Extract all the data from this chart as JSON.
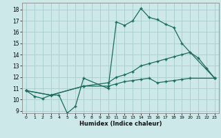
{
  "title": "",
  "xlabel": "Humidex (Indice chaleur)",
  "bg_color": "#cce8e8",
  "grid_color": "#aacccc",
  "line_color": "#1a6b5a",
  "xlim": [
    -0.5,
    23.5
  ],
  "ylim": [
    8.8,
    18.6
  ],
  "xticks": [
    0,
    1,
    2,
    3,
    4,
    5,
    6,
    7,
    8,
    9,
    10,
    11,
    12,
    13,
    14,
    15,
    16,
    17,
    18,
    19,
    20,
    21,
    22,
    23
  ],
  "yticks": [
    9,
    10,
    11,
    12,
    13,
    14,
    15,
    16,
    17,
    18
  ],
  "line1_x": [
    0,
    1,
    2,
    3,
    4,
    5,
    6,
    7,
    10,
    11,
    12,
    13,
    14,
    15,
    16,
    17,
    18,
    19,
    20,
    21,
    22,
    23
  ],
  "line1_y": [
    10.8,
    10.3,
    10.1,
    10.4,
    10.4,
    8.8,
    9.4,
    11.9,
    11.0,
    16.9,
    16.6,
    17.0,
    18.1,
    17.3,
    17.1,
    16.7,
    16.4,
    15.0,
    14.2,
    13.7,
    12.8,
    11.9
  ],
  "line2_x": [
    0,
    3,
    7,
    10,
    11,
    12,
    13,
    14,
    15,
    16,
    17,
    18,
    19,
    20,
    23
  ],
  "line2_y": [
    10.8,
    10.4,
    11.2,
    11.5,
    12.0,
    12.2,
    12.5,
    13.0,
    13.2,
    13.4,
    13.6,
    13.8,
    14.0,
    14.2,
    11.9
  ],
  "line3_x": [
    0,
    3,
    7,
    10,
    11,
    12,
    13,
    14,
    15,
    16,
    17,
    18,
    19,
    20,
    23
  ],
  "line3_y": [
    10.8,
    10.4,
    11.2,
    11.2,
    11.4,
    11.6,
    11.7,
    11.8,
    11.9,
    11.5,
    11.6,
    11.7,
    11.8,
    11.9,
    11.9
  ]
}
